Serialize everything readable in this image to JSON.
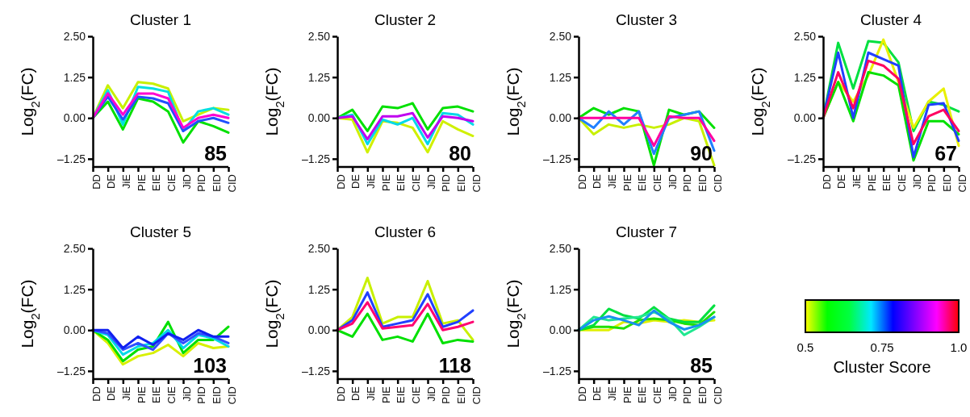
{
  "chart_data": [
    {
      "type": "line",
      "title": "Cluster 1",
      "ylabel": "Log$_{2}$(FC)",
      "categories": [
        "DD",
        "DE",
        "JiE",
        "PIE",
        "EIE",
        "CIE",
        "JiD",
        "PID",
        "EID",
        "CID"
      ],
      "ylim": [
        -1.5,
        2.5
      ],
      "yticks": [
        {
          "value": 2.5,
          "label": "2.50"
        },
        {
          "value": 1.25,
          "label": "1.25"
        },
        {
          "value": 0,
          "label": "0.00"
        },
        {
          "value": -1.25,
          "label": "–1.25"
        }
      ],
      "annotations": [
        "85"
      ],
      "series": [
        {
          "color": "#c8f000",
          "values": [
            0,
            1.0,
            0.3,
            1.1,
            1.05,
            0.9,
            -0.1,
            0.1,
            0.3,
            0.25
          ]
        },
        {
          "color": "#00e000",
          "values": [
            0,
            0.5,
            -0.35,
            0.6,
            0.5,
            0.2,
            -0.75,
            -0.1,
            -0.25,
            -0.45
          ]
        },
        {
          "color": "#00e0e0",
          "values": [
            0,
            0.85,
            -0.2,
            0.95,
            0.9,
            0.8,
            -0.4,
            0.2,
            0.3,
            0.1
          ]
        },
        {
          "color": "#2050ff",
          "values": [
            0,
            0.65,
            -0.05,
            0.65,
            0.6,
            0.45,
            -0.4,
            -0.1,
            0.0,
            -0.15
          ]
        },
        {
          "color": "#ff00d0",
          "values": [
            0,
            0.75,
            0.1,
            0.75,
            0.75,
            0.6,
            -0.3,
            0,
            0.1,
            0
          ]
        }
      ]
    },
    {
      "type": "line",
      "title": "Cluster 2",
      "ylabel": "Log$_{2}$(FC)",
      "categories": [
        "DD",
        "DE",
        "JiE",
        "PIE",
        "EIE",
        "CIE",
        "JiD",
        "PID",
        "EID",
        "CID"
      ],
      "ylim": [
        -1.5,
        2.5
      ],
      "yticks": [
        {
          "value": 2.5,
          "label": "2.50"
        },
        {
          "value": 1.25,
          "label": "1.25"
        },
        {
          "value": 0,
          "label": "0.00"
        },
        {
          "value": -1.25,
          "label": "–1.25"
        }
      ],
      "annotations": [
        "80"
      ],
      "series": [
        {
          "color": "#00e000",
          "values": [
            0,
            0.25,
            -0.4,
            0.35,
            0.3,
            0.45,
            -0.35,
            0.3,
            0.35,
            0.2
          ]
        },
        {
          "color": "#d0f000",
          "values": [
            0,
            -0.05,
            -1.05,
            -0.1,
            -0.15,
            -0.3,
            -1.05,
            -0.1,
            -0.35,
            -0.55
          ]
        },
        {
          "color": "#00d8e8",
          "values": [
            0,
            0.1,
            -0.8,
            -0.05,
            -0.2,
            0.0,
            -0.8,
            0.15,
            0.1,
            -0.2
          ]
        },
        {
          "color": "#c000f0",
          "values": [
            0,
            0.05,
            -0.65,
            0.05,
            0.05,
            0.15,
            -0.6,
            0.05,
            0.0,
            -0.1
          ]
        }
      ]
    },
    {
      "type": "line",
      "title": "Cluster 3",
      "ylabel": "Log$_{2}$(FC)",
      "categories": [
        "DD",
        "DE",
        "JiE",
        "PIE",
        "EIE",
        "CIE",
        "JiD",
        "PID",
        "EID",
        "CID"
      ],
      "ylim": [
        -1.5,
        2.5
      ],
      "yticks": [
        {
          "value": 2.5,
          "label": "2.50"
        },
        {
          "value": 1.25,
          "label": "1.25"
        },
        {
          "value": 0,
          "label": "0.00"
        },
        {
          "value": -1.25,
          "label": "–1.25"
        }
      ],
      "annotations": [
        "90"
      ],
      "series": [
        {
          "color": "#c8f000",
          "values": [
            0,
            -0.5,
            -0.2,
            -0.3,
            -0.2,
            -0.3,
            -0.2,
            0,
            -0.1,
            -1.45
          ]
        },
        {
          "color": "#00e000",
          "values": [
            0,
            0.3,
            0.1,
            0.3,
            0.2,
            -1.45,
            0.25,
            0.1,
            0.2,
            -0.3
          ]
        },
        {
          "color": "#2080ff",
          "values": [
            0,
            -0.3,
            0.2,
            -0.2,
            0.2,
            -1.1,
            0,
            0.1,
            0.2,
            -1.0
          ]
        },
        {
          "color": "#ff00a0",
          "values": [
            0,
            0,
            0,
            0,
            0,
            -0.85,
            0.05,
            0,
            0,
            -0.7
          ]
        }
      ]
    },
    {
      "type": "line",
      "title": "Cluster 4",
      "ylabel": "Log$_{2}$(FC)",
      "categories": [
        "DD",
        "DE",
        "JiE",
        "PIE",
        "EIE",
        "CIE",
        "JiD",
        "PID",
        "EID",
        "CID"
      ],
      "ylim": [
        -1.5,
        2.5
      ],
      "yticks": [
        {
          "value": 2.5,
          "label": "2.50"
        },
        {
          "value": 1.25,
          "label": "1.25"
        },
        {
          "value": 0,
          "label": "0.00"
        },
        {
          "value": -1.25,
          "label": "–1.25"
        }
      ],
      "annotations": [
        "67"
      ],
      "series": [
        {
          "color": "#00e040",
          "values": [
            0,
            2.3,
            0.9,
            2.35,
            2.3,
            1.7,
            -0.4,
            0.5,
            0.4,
            0.2
          ]
        },
        {
          "color": "#e8f000",
          "values": [
            0,
            1.1,
            0.5,
            1.3,
            2.4,
            1.1,
            -0.3,
            0.5,
            0.9,
            -0.85
          ]
        },
        {
          "color": "#00e000",
          "values": [
            0,
            1.1,
            -0.1,
            1.4,
            1.3,
            1.0,
            -1.3,
            -0.1,
            -0.1,
            -0.5
          ]
        },
        {
          "color": "#2040ff",
          "values": [
            0,
            2.0,
            0,
            2.0,
            1.8,
            1.6,
            -1.2,
            0.4,
            0.45,
            -0.7
          ]
        },
        {
          "color": "#ff0060",
          "values": [
            0,
            1.4,
            0.3,
            1.75,
            1.6,
            1.2,
            -0.8,
            0.05,
            0.25,
            -0.4
          ]
        }
      ]
    },
    {
      "type": "line",
      "title": "Cluster 5",
      "ylabel": "Log$_{2}$(FC)",
      "categories": [
        "DD",
        "DE",
        "JiE",
        "PIE",
        "EIE",
        "CIE",
        "JiD",
        "PID",
        "EID",
        "CID"
      ],
      "ylim": [
        -1.5,
        2.5
      ],
      "yticks": [
        {
          "value": 2.5,
          "label": "2.50"
        },
        {
          "value": 1.25,
          "label": "1.25"
        },
        {
          "value": 0,
          "label": "0.00"
        },
        {
          "value": -1.25,
          "label": "–1.25"
        }
      ],
      "annotations": [
        "103"
      ],
      "series": [
        {
          "color": "#d8f000",
          "values": [
            0,
            -0.4,
            -1.05,
            -0.8,
            -0.7,
            -0.45,
            -0.8,
            -0.4,
            -0.55,
            -0.5
          ]
        },
        {
          "color": "#00e000",
          "values": [
            0,
            -0.3,
            -0.95,
            -0.6,
            -0.5,
            0.25,
            -0.7,
            -0.3,
            -0.3,
            0.1
          ]
        },
        {
          "color": "#00d8e8",
          "values": [
            0,
            -0.15,
            -0.75,
            -0.5,
            -0.4,
            0.0,
            -0.55,
            -0.15,
            -0.25,
            -0.5
          ]
        },
        {
          "color": "#3050ff",
          "values": [
            0,
            -0.1,
            -0.6,
            -0.4,
            -0.6,
            -0.1,
            -0.4,
            -0.1,
            -0.2,
            -0.4
          ]
        },
        {
          "color": "#1020f0",
          "values": [
            0,
            0,
            -0.55,
            -0.2,
            -0.45,
            -0.1,
            -0.3,
            0,
            -0.2,
            -0.2
          ]
        }
      ]
    },
    {
      "type": "line",
      "title": "Cluster 6",
      "ylabel": "Log$_{2}$(FC)",
      "categories": [
        "DD",
        "DE",
        "JiE",
        "PIE",
        "EIE",
        "CIE",
        "JiD",
        "PID",
        "EID",
        "CID"
      ],
      "ylim": [
        -1.5,
        2.5
      ],
      "yticks": [
        {
          "value": 2.5,
          "label": "2.50"
        },
        {
          "value": 1.25,
          "label": "1.25"
        },
        {
          "value": 0,
          "label": "0.00"
        },
        {
          "value": -1.25,
          "label": "–1.25"
        }
      ],
      "annotations": [
        "118"
      ],
      "series": [
        {
          "color": "#c8f000",
          "values": [
            0,
            0.4,
            1.6,
            0.2,
            0.4,
            0.4,
            1.5,
            0.2,
            0.3,
            -0.3
          ]
        },
        {
          "color": "#00e000",
          "values": [
            0,
            -0.2,
            0.5,
            -0.3,
            -0.2,
            -0.35,
            0.5,
            -0.4,
            -0.3,
            -0.35
          ]
        },
        {
          "color": "#2040ff",
          "values": [
            0,
            0.3,
            1.15,
            0.1,
            0.2,
            0.3,
            1.1,
            0.1,
            0.25,
            0.6
          ]
        },
        {
          "color": "#ff0070",
          "values": [
            0,
            0.2,
            0.85,
            0.05,
            0.1,
            0.15,
            0.8,
            0,
            0.1,
            0.25
          ]
        }
      ]
    },
    {
      "type": "line",
      "title": "Cluster 7",
      "ylabel": "Log$_{2}$(FC)",
      "categories": [
        "DD",
        "DE",
        "JiE",
        "PIE",
        "EIE",
        "CIE",
        "JiD",
        "PID",
        "EID",
        "CID"
      ],
      "ylim": [
        -1.5,
        2.5
      ],
      "yticks": [
        {
          "value": 2.5,
          "label": "2.50"
        },
        {
          "value": 1.25,
          "label": "1.25"
        },
        {
          "value": 0,
          "label": "0.00"
        },
        {
          "value": -1.25,
          "label": "–1.25"
        }
      ],
      "annotations": [
        "85"
      ],
      "clabel": "Cluster Score",
      "clim": [
        0.5,
        1.0
      ],
      "cticks": [
        {
          "value": 0.5,
          "label": "0.5"
        },
        {
          "value": 0.75,
          "label": "0.75"
        },
        {
          "value": 1,
          "label": "1.0"
        }
      ],
      "series": [
        {
          "color": "#e0f000",
          "values": [
            0,
            0.0,
            0.0,
            0.25,
            0.2,
            0.3,
            0.25,
            0.3,
            0.25,
            0.3
          ]
        },
        {
          "color": "#20e000",
          "values": [
            0,
            0.1,
            0.1,
            0.05,
            0.3,
            0.35,
            0.3,
            0.2,
            0.15,
            0.55
          ]
        },
        {
          "color": "#00e040",
          "values": [
            0,
            0.15,
            0.65,
            0.45,
            0.35,
            0.7,
            0.35,
            0.25,
            0.25,
            0.75
          ]
        },
        {
          "color": "#20e890",
          "values": [
            0,
            0.4,
            0.3,
            0.35,
            0.4,
            0.55,
            0.35,
            -0.15,
            0.1,
            0.4
          ]
        },
        {
          "color": "#1890f0",
          "values": [
            0,
            0.3,
            0.42,
            0.3,
            0.15,
            0.6,
            0.25,
            0.02,
            0.15,
            0.4
          ]
        }
      ]
    }
  ]
}
